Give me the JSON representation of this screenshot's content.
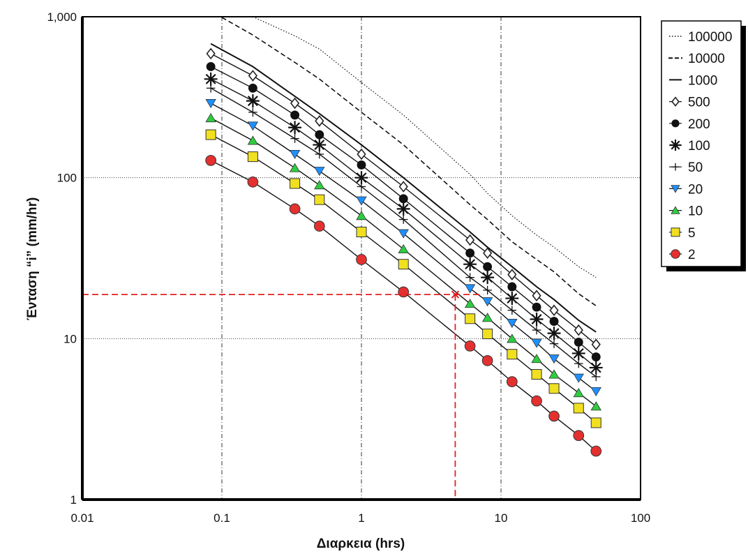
{
  "chart_data": {
    "type": "line",
    "title": "",
    "xlabel": "Διαρκεια (hrs)",
    "ylabel": "Ένταση “i” (mm/hr)",
    "x_scale": "log",
    "y_scale": "log",
    "xlim": [
      0.01,
      100
    ],
    "ylim": [
      1,
      1000
    ],
    "grid": true,
    "legend_position": "top-right outside",
    "x_ticks": [
      "0.01",
      "0.1",
      "1",
      "10",
      "100"
    ],
    "y_ticks": [
      "1",
      "10",
      "100",
      "1,000"
    ],
    "durations": [
      0.0833,
      0.1667,
      0.3333,
      0.5,
      1,
      2,
      6,
      8,
      12,
      18,
      24,
      36,
      48
    ],
    "series": [
      {
        "name": "100000",
        "style": "dotted",
        "x": [
          0.1667,
          0.3333,
          0.5,
          1,
          2,
          6,
          8,
          12,
          18,
          24,
          36,
          48
        ],
        "values": [
          1000,
          760,
          630,
          390,
          245,
          105,
          80,
          58,
          44,
          37,
          28,
          24
        ]
      },
      {
        "name": "10000",
        "style": "dashed",
        "x": [
          0.1,
          0.1667,
          0.3333,
          0.5,
          1,
          2,
          6,
          8,
          12,
          18,
          24,
          36,
          48
        ],
        "values": [
          990,
          770,
          520,
          410,
          255,
          160,
          68,
          55,
          40,
          31,
          26,
          19,
          16
        ]
      },
      {
        "name": "1000",
        "style": "solid",
        "x": [
          0.0833,
          0.1667,
          0.3333,
          0.5,
          1,
          2,
          6,
          8,
          12,
          18,
          24,
          36,
          48
        ],
        "values": [
          680,
          490,
          320,
          250,
          160,
          100,
          46,
          37,
          28,
          21,
          17.5,
          13,
          11
        ]
      },
      {
        "name": "500",
        "marker": "diamond",
        "x": [
          0.0833,
          0.1667,
          0.3333,
          0.5,
          1,
          2,
          6,
          8,
          12,
          18,
          24,
          36,
          48
        ],
        "values": [
          590,
          430,
          290,
          225,
          140,
          88,
          41,
          34,
          25,
          18.5,
          15,
          11.3,
          9.2
        ]
      },
      {
        "name": "200",
        "marker": "filled-circle",
        "x": [
          0.0833,
          0.1667,
          0.3333,
          0.5,
          1,
          2,
          6,
          8,
          12,
          18,
          24,
          36,
          48
        ],
        "values": [
          490,
          360,
          245,
          185,
          120,
          74,
          34,
          28,
          21,
          15.7,
          12.8,
          9.5,
          7.7
        ]
      },
      {
        "name": "100",
        "marker": "asterisk",
        "x": [
          0.0833,
          0.1667,
          0.3333,
          0.5,
          1,
          2,
          6,
          8,
          12,
          18,
          24,
          36,
          48
        ],
        "values": [
          410,
          300,
          205,
          160,
          100,
          64,
          29,
          24,
          17.8,
          13.2,
          10.8,
          8.1,
          6.6
        ]
      },
      {
        "name": "50",
        "marker": "plus",
        "x": [
          0.0833,
          0.1667,
          0.3333,
          0.5,
          1,
          2,
          6,
          8,
          12,
          18,
          24,
          36,
          48
        ],
        "values": [
          360,
          255,
          175,
          140,
          88,
          55,
          24,
          20,
          15,
          11.3,
          9.3,
          7,
          5.8
        ]
      },
      {
        "name": "20",
        "marker": "down-triangle",
        "color": "#1e90ff",
        "x": [
          0.0833,
          0.1667,
          0.3333,
          0.5,
          1,
          2,
          6,
          8,
          12,
          18,
          24,
          36,
          48
        ],
        "values": [
          290,
          210,
          140,
          110,
          72,
          45,
          20.5,
          17,
          12.5,
          9.4,
          7.5,
          5.7,
          4.7
        ]
      },
      {
        "name": "10",
        "marker": "up-triangle",
        "color": "#2ecc40",
        "x": [
          0.0833,
          0.1667,
          0.3333,
          0.5,
          1,
          2,
          6,
          8,
          12,
          18,
          24,
          36,
          48
        ],
        "values": [
          235,
          170,
          115,
          90,
          58,
          36,
          16.5,
          13.5,
          10,
          7.5,
          6,
          4.6,
          3.8
        ]
      },
      {
        "name": "5",
        "marker": "square",
        "color": "#f0e020",
        "x": [
          0.0833,
          0.1667,
          0.3333,
          0.5,
          1,
          2,
          6,
          8,
          12,
          18,
          24,
          36,
          48
        ],
        "values": [
          185,
          135,
          92,
          73,
          46,
          29,
          13.3,
          10.7,
          8,
          6,
          4.9,
          3.7,
          3
        ]
      },
      {
        "name": "2",
        "marker": "circle",
        "color": "#e53030",
        "x": [
          0.0833,
          0.1667,
          0.3333,
          0.5,
          1,
          2,
          6,
          8,
          12,
          18,
          24,
          36,
          48
        ],
        "values": [
          128,
          94,
          64,
          50,
          31,
          19.5,
          9,
          7.3,
          5.4,
          4.1,
          3.3,
          2.5,
          2
        ]
      }
    ],
    "annotation": {
      "x": 4.7,
      "y": 18.8,
      "color": "#e02020"
    }
  }
}
